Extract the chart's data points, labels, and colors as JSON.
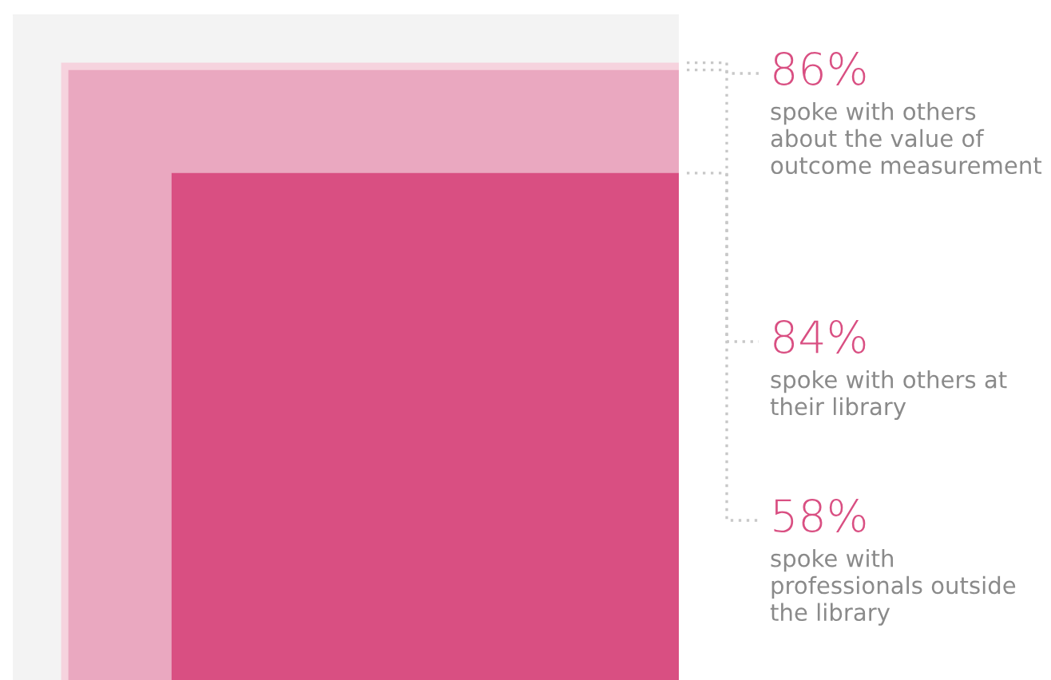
{
  "chart_data": {
    "type": "other",
    "categories": [
      "spoke with others about the value of outcome measurement",
      "spoke with others at their library",
      "spoke with professionals outside the library"
    ],
    "values": [
      86,
      84,
      58
    ],
    "value_labels": [
      "86%",
      "84%",
      "58%"
    ],
    "colors": [
      "#f6d3de",
      "#eaa8c0",
      "#d94f82"
    ]
  }
}
